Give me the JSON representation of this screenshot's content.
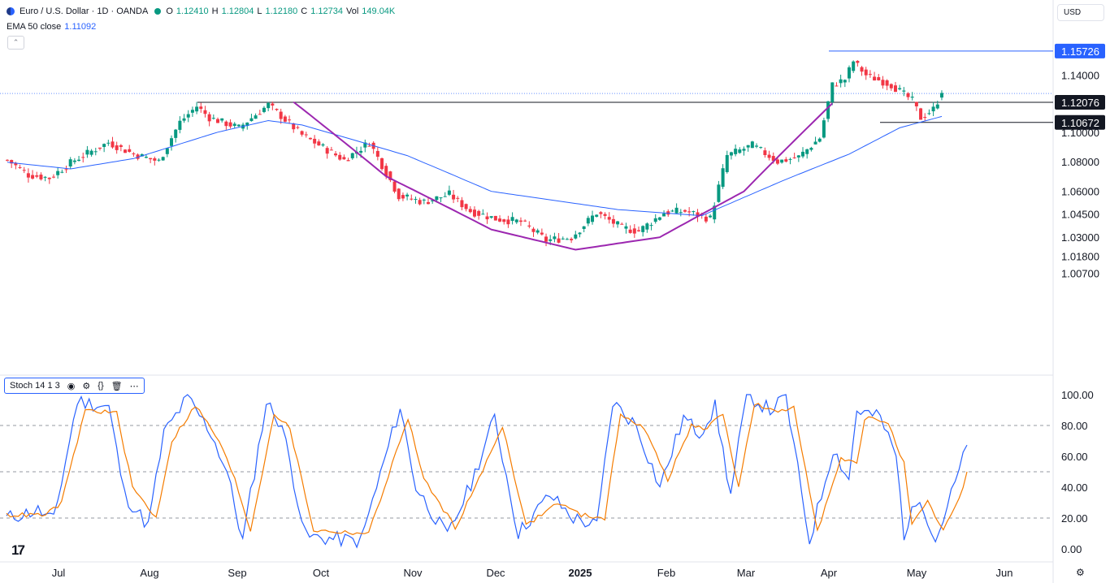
{
  "header": {
    "symbol": "Euro / U.S. Dollar · 1D · OANDA",
    "o_label": "O",
    "o_value": "1.12410",
    "h_label": "H",
    "h_value": "1.12804",
    "l_label": "L",
    "l_value": "1.12180",
    "c_label": "C",
    "c_value": "1.12734",
    "vol_label": "Vol",
    "vol_value": "149.04K",
    "ema_label": "EMA 50 close",
    "ema_value": "1.11092",
    "currency": "USD",
    "up_color": "#089981",
    "down_color": "#f23645",
    "ema_color": "#2962ff"
  },
  "stoch_legend": {
    "label": "Stoch 14 1 3",
    "icons": [
      "eye-icon",
      "gear-icon",
      "source-code-icon",
      "trash-icon",
      "more-icon"
    ]
  },
  "chart_data": [
    {
      "type": "candlestick",
      "title": "Euro / U.S. Dollar · 1D · OANDA",
      "x_tick_labels": [
        "Jul",
        "Aug",
        "Sep",
        "Oct",
        "Nov",
        "Dec",
        "2025",
        "Feb",
        "Mar",
        "Apr",
        "May",
        "Jun"
      ],
      "y_tick_labels": [
        "1.14000",
        "1.10000",
        "1.08000",
        "1.06000",
        "1.04500",
        "1.03000",
        "1.01800",
        "1.00700"
      ],
      "y_range": [
        1.007,
        1.157
      ],
      "scale": "log",
      "price_labels": [
        {
          "text": "1.15726",
          "value": 1.15726,
          "style": "blue"
        },
        {
          "text": "1.12076",
          "value": 1.12076,
          "style": "black"
        },
        {
          "text": "1.10672",
          "value": 1.10672,
          "style": "black"
        }
      ],
      "horizontal_lines": [
        {
          "value": 1.15726,
          "color": "#2962ff"
        },
        {
          "value": 1.12076,
          "color": "#131722"
        },
        {
          "value": 1.10672,
          "color": "#131722"
        }
      ],
      "anchors": [
        {
          "i": 0,
          "v": 1.081
        },
        {
          "i": 5,
          "v": 1.071
        },
        {
          "i": 10,
          "v": 1.069
        },
        {
          "i": 16,
          "v": 1.081
        },
        {
          "i": 24,
          "v": 1.093
        },
        {
          "i": 30,
          "v": 1.085
        },
        {
          "i": 36,
          "v": 1.08
        },
        {
          "i": 41,
          "v": 1.107
        },
        {
          "i": 45,
          "v": 1.118
        },
        {
          "i": 48,
          "v": 1.11
        },
        {
          "i": 55,
          "v": 1.103
        },
        {
          "i": 62,
          "v": 1.119
        },
        {
          "i": 70,
          "v": 1.098
        },
        {
          "i": 80,
          "v": 1.081
        },
        {
          "i": 86,
          "v": 1.093
        },
        {
          "i": 93,
          "v": 1.057
        },
        {
          "i": 99,
          "v": 1.053
        },
        {
          "i": 105,
          "v": 1.058
        },
        {
          "i": 110,
          "v": 1.047
        },
        {
          "i": 116,
          "v": 1.042
        },
        {
          "i": 122,
          "v": 1.04
        },
        {
          "i": 128,
          "v": 1.028
        },
        {
          "i": 134,
          "v": 1.03
        },
        {
          "i": 140,
          "v": 1.046
        },
        {
          "i": 146,
          "v": 1.036
        },
        {
          "i": 150,
          "v": 1.034
        },
        {
          "i": 156,
          "v": 1.046
        },
        {
          "i": 161,
          "v": 1.047
        },
        {
          "i": 167,
          "v": 1.042
        },
        {
          "i": 171,
          "v": 1.084
        },
        {
          "i": 177,
          "v": 1.091
        },
        {
          "i": 183,
          "v": 1.08
        },
        {
          "i": 188,
          "v": 1.083
        },
        {
          "i": 193,
          "v": 1.096
        },
        {
          "i": 196,
          "v": 1.133
        },
        {
          "i": 199,
          "v": 1.137
        },
        {
          "i": 201,
          "v": 1.15
        },
        {
          "i": 204,
          "v": 1.14
        },
        {
          "i": 210,
          "v": 1.133
        },
        {
          "i": 215,
          "v": 1.122
        },
        {
          "i": 217,
          "v": 1.11
        },
        {
          "i": 220,
          "v": 1.116
        },
        {
          "i": 222,
          "v": 1.127
        }
      ],
      "ema_anchors": [
        {
          "i": 0,
          "v": 1.0795
        },
        {
          "i": 15,
          "v": 1.075
        },
        {
          "i": 30,
          "v": 1.082
        },
        {
          "i": 50,
          "v": 1.1
        },
        {
          "i": 62,
          "v": 1.108
        },
        {
          "i": 70,
          "v": 1.105
        },
        {
          "i": 95,
          "v": 1.084
        },
        {
          "i": 115,
          "v": 1.06
        },
        {
          "i": 145,
          "v": 1.048
        },
        {
          "i": 165,
          "v": 1.044
        },
        {
          "i": 185,
          "v": 1.068
        },
        {
          "i": 200,
          "v": 1.085
        },
        {
          "i": 212,
          "v": 1.103
        },
        {
          "i": 222,
          "v": 1.1109
        }
      ],
      "cup_anchors": [
        {
          "i": 68,
          "v": 1.121
        },
        {
          "i": 90,
          "v": 1.07
        },
        {
          "i": 115,
          "v": 1.035
        },
        {
          "i": 135,
          "v": 1.022
        },
        {
          "i": 155,
          "v": 1.03
        },
        {
          "i": 175,
          "v": 1.06
        },
        {
          "i": 196,
          "v": 1.12
        }
      ],
      "ema_label": "EMA 50 close",
      "ema_color": "#2962ff",
      "cup_color": "#9c27b0"
    },
    {
      "type": "line",
      "title": "Stoch 14 1 3",
      "y_tick_labels": [
        "100.00",
        "80.00",
        "60.00",
        "40.00",
        "20.00",
        "0.00"
      ],
      "y_range": [
        0,
        100
      ],
      "reference_levels": [
        80,
        50,
        20
      ],
      "series": [
        {
          "name": "%K",
          "color": "#2962ff",
          "anchors": [
            {
              "i": 0,
              "v": 20
            },
            {
              "i": 8,
              "v": 25
            },
            {
              "i": 12,
              "v": 18
            },
            {
              "i": 18,
              "v": 96
            },
            {
              "i": 26,
              "v": 92
            },
            {
              "i": 30,
              "v": 35
            },
            {
              "i": 36,
              "v": 15
            },
            {
              "i": 40,
              "v": 75
            },
            {
              "i": 46,
              "v": 98
            },
            {
              "i": 52,
              "v": 75
            },
            {
              "i": 56,
              "v": 50
            },
            {
              "i": 60,
              "v": 5
            },
            {
              "i": 66,
              "v": 95
            },
            {
              "i": 70,
              "v": 80
            },
            {
              "i": 76,
              "v": 8
            },
            {
              "i": 90,
              "v": 5
            },
            {
              "i": 100,
              "v": 92
            },
            {
              "i": 104,
              "v": 40
            },
            {
              "i": 112,
              "v": 8
            },
            {
              "i": 118,
              "v": 42
            },
            {
              "i": 124,
              "v": 85
            },
            {
              "i": 130,
              "v": 10
            },
            {
              "i": 138,
              "v": 35
            },
            {
              "i": 144,
              "v": 20
            },
            {
              "i": 150,
              "v": 15
            },
            {
              "i": 154,
              "v": 95
            },
            {
              "i": 160,
              "v": 80
            },
            {
              "i": 166,
              "v": 40
            },
            {
              "i": 172,
              "v": 85
            },
            {
              "i": 176,
              "v": 75
            },
            {
              "i": 180,
              "v": 92
            },
            {
              "i": 184,
              "v": 35
            },
            {
              "i": 188,
              "v": 100
            },
            {
              "i": 194,
              "v": 90
            },
            {
              "i": 198,
              "v": 98
            },
            {
              "i": 204,
              "v": 5
            },
            {
              "i": 210,
              "v": 65
            },
            {
              "i": 214,
              "v": 45
            },
            {
              "i": 216,
              "v": 90
            },
            {
              "i": 222,
              "v": 85
            },
            {
              "i": 226,
              "v": 60
            },
            {
              "i": 228,
              "v": 10
            },
            {
              "i": 232,
              "v": 35
            },
            {
              "i": 236,
              "v": 5
            },
            {
              "i": 240,
              "v": 35
            },
            {
              "i": 244,
              "v": 66
            }
          ]
        },
        {
          "name": "%D",
          "color": "#f57c00",
          "anchors": [
            {
              "i": 0,
              "v": 22
            },
            {
              "i": 10,
              "v": 22
            },
            {
              "i": 14,
              "v": 30
            },
            {
              "i": 20,
              "v": 90
            },
            {
              "i": 28,
              "v": 88
            },
            {
              "i": 32,
              "v": 40
            },
            {
              "i": 38,
              "v": 20
            },
            {
              "i": 42,
              "v": 70
            },
            {
              "i": 48,
              "v": 93
            },
            {
              "i": 54,
              "v": 70
            },
            {
              "i": 58,
              "v": 45
            },
            {
              "i": 62,
              "v": 12
            },
            {
              "i": 68,
              "v": 88
            },
            {
              "i": 72,
              "v": 78
            },
            {
              "i": 78,
              "v": 12
            },
            {
              "i": 92,
              "v": 10
            },
            {
              "i": 102,
              "v": 85
            },
            {
              "i": 106,
              "v": 45
            },
            {
              "i": 114,
              "v": 14
            },
            {
              "i": 120,
              "v": 45
            },
            {
              "i": 126,
              "v": 80
            },
            {
              "i": 132,
              "v": 15
            },
            {
              "i": 140,
              "v": 30
            },
            {
              "i": 146,
              "v": 22
            },
            {
              "i": 152,
              "v": 20
            },
            {
              "i": 156,
              "v": 88
            },
            {
              "i": 162,
              "v": 78
            },
            {
              "i": 168,
              "v": 45
            },
            {
              "i": 174,
              "v": 80
            },
            {
              "i": 178,
              "v": 78
            },
            {
              "i": 182,
              "v": 88
            },
            {
              "i": 186,
              "v": 40
            },
            {
              "i": 190,
              "v": 94
            },
            {
              "i": 196,
              "v": 88
            },
            {
              "i": 200,
              "v": 92
            },
            {
              "i": 206,
              "v": 12
            },
            {
              "i": 212,
              "v": 58
            },
            {
              "i": 216,
              "v": 55
            },
            {
              "i": 218,
              "v": 85
            },
            {
              "i": 224,
              "v": 82
            },
            {
              "i": 228,
              "v": 55
            },
            {
              "i": 230,
              "v": 15
            },
            {
              "i": 234,
              "v": 30
            },
            {
              "i": 238,
              "v": 12
            },
            {
              "i": 242,
              "v": 32
            },
            {
              "i": 244,
              "v": 50
            }
          ]
        }
      ]
    }
  ]
}
